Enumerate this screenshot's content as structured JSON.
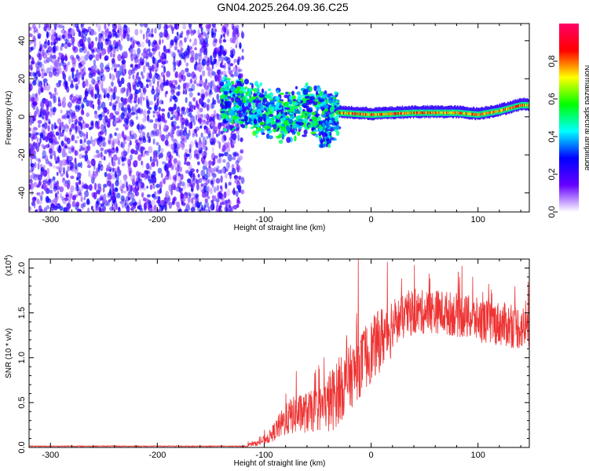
{
  "figure": {
    "title": "GN04.2025.264.09.36.C25"
  },
  "chart_data": [
    {
      "type": "heatmap",
      "xlabel": "Height of straight line (km)",
      "ylabel": "Frequency (Hz)",
      "xlim": [
        -320,
        148
      ],
      "ylim": [
        -50,
        49
      ],
      "x_ticks": [
        -300,
        -200,
        -100,
        0,
        100
      ],
      "x_tick_labels": [
        "-300",
        "-200",
        "-100",
        "0",
        "100"
      ],
      "y_ticks": [
        -40,
        -20,
        0,
        20,
        40
      ],
      "y_tick_labels": [
        "-40",
        "-20",
        "0",
        "20",
        "40"
      ],
      "colorbar": {
        "label": "Normalized spectral amplitude",
        "range": [
          0,
          1
        ],
        "ticks": [
          0.0,
          0.2,
          0.4,
          0.6,
          0.8
        ],
        "tick_labels": [
          "0.0",
          "0.2",
          "0.4",
          "0.6",
          "0.8"
        ],
        "colormap": [
          "#ffffff",
          "#6600ff",
          "#0000ff",
          "#00ffff",
          "#00ff00",
          "#ffff00",
          "#ff0000",
          "#ff0066"
        ]
      },
      "regions": [
        {
          "x_range": [
            -320,
            -120
          ],
          "y_range": [
            -50,
            49
          ],
          "description_level": "scattered noise",
          "amplitude": [
            0.05,
            0.3
          ]
        },
        {
          "x_range": [
            -140,
            -30
          ],
          "y_range": [
            -15,
            15
          ],
          "amplitude": [
            0.2,
            0.6
          ]
        },
        {
          "x_range": [
            -30,
            148
          ],
          "y_range": [
            -1,
            8
          ],
          "amplitude": [
            0.6,
            1.0
          ]
        }
      ],
      "ridge": [
        {
          "x": -140,
          "y": 8
        },
        {
          "x": -120,
          "y": 6
        },
        {
          "x": -100,
          "y": 2
        },
        {
          "x": -80,
          "y": 0
        },
        {
          "x": -60,
          "y": 4
        },
        {
          "x": -40,
          "y": 2
        },
        {
          "x": -30,
          "y": 2
        },
        {
          "x": 0,
          "y": 1
        },
        {
          "x": 40,
          "y": 2
        },
        {
          "x": 80,
          "y": 2
        },
        {
          "x": 100,
          "y": 1
        },
        {
          "x": 120,
          "y": 3
        },
        {
          "x": 140,
          "y": 6
        }
      ]
    },
    {
      "type": "line",
      "xlabel": "Height of straight line (km)",
      "ylabel": "SNR (10 * v/v)",
      "y_scale_label": "(x10",
      "y_scale_exponent": "4",
      "y_scale_close": ")",
      "xlim": [
        -320,
        148
      ],
      "ylim": [
        0,
        2.1
      ],
      "x_ticks": [
        -300,
        -200,
        -100,
        0,
        100
      ],
      "x_tick_labels": [
        "-300",
        "-200",
        "-100",
        "0",
        "100"
      ],
      "y_ticks": [
        0.0,
        0.5,
        1.0,
        1.5,
        2.0
      ],
      "y_tick_labels": [
        "0.0",
        "0.5",
        "1.0",
        "1.5",
        "2.0"
      ],
      "color": "#ee3333",
      "envelope": [
        {
          "x": -320,
          "y": 0.01
        },
        {
          "x": -120,
          "y": 0.02
        },
        {
          "x": -105,
          "y": 0.05
        },
        {
          "x": -95,
          "y": 0.12
        },
        {
          "x": -85,
          "y": 0.25
        },
        {
          "x": -75,
          "y": 0.35
        },
        {
          "x": -65,
          "y": 0.38
        },
        {
          "x": -55,
          "y": 0.4
        },
        {
          "x": -45,
          "y": 0.45
        },
        {
          "x": -35,
          "y": 0.55
        },
        {
          "x": -25,
          "y": 0.7
        },
        {
          "x": -15,
          "y": 0.85
        },
        {
          "x": -5,
          "y": 1.0
        },
        {
          "x": 5,
          "y": 1.15
        },
        {
          "x": 15,
          "y": 1.3
        },
        {
          "x": 25,
          "y": 1.42
        },
        {
          "x": 40,
          "y": 1.5
        },
        {
          "x": 60,
          "y": 1.52
        },
        {
          "x": 80,
          "y": 1.48
        },
        {
          "x": 100,
          "y": 1.42
        },
        {
          "x": 120,
          "y": 1.38
        },
        {
          "x": 148,
          "y": 1.32
        }
      ],
      "spikes": [
        {
          "x": -70,
          "y": 0.85
        },
        {
          "x": -30,
          "y": 1.0
        },
        {
          "x": -12,
          "y": 2.1
        },
        {
          "x": -5,
          "y": 1.35
        },
        {
          "x": 35,
          "y": 1.75
        },
        {
          "x": 55,
          "y": 1.88
        },
        {
          "x": 85,
          "y": 2.02
        },
        {
          "x": 95,
          "y": 1.9
        },
        {
          "x": 110,
          "y": 1.82
        }
      ]
    }
  ]
}
